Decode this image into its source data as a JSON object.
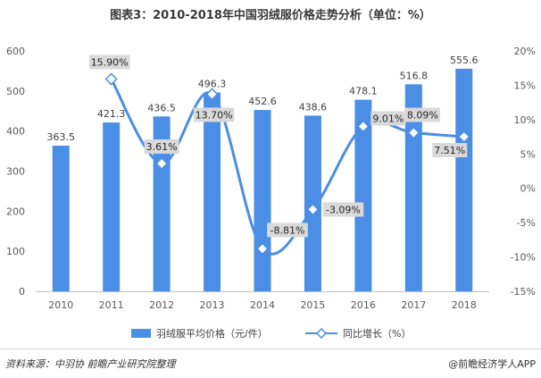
{
  "title": "图表3：2010-2018年中国羽绒服价格走势分析（单位：%）",
  "source": "资料来源：中羽协 前瞻产业研究院整理",
  "brand": "@前瞻经济学人APP",
  "colors": {
    "bar": "#4a8ee6",
    "line": "#4a8ee6",
    "label_box": "#d9d9d9"
  },
  "chart_data": {
    "type": "bar",
    "categories": [
      "2010",
      "2011",
      "2012",
      "2013",
      "2014",
      "2015",
      "2016",
      "2017",
      "2018"
    ],
    "series": [
      {
        "name": "羽绒服平均价格（元/件）",
        "type": "bar",
        "axis": "left",
        "values": [
          363.5,
          421.3,
          436.5,
          496.3,
          452.6,
          438.6,
          478.1,
          516.8,
          555.6
        ],
        "labels": [
          "363.5",
          "421.3",
          "436.5",
          "496.3",
          "452.6",
          "438.6",
          "478.1",
          "516.8",
          "555.6"
        ]
      },
      {
        "name": "同比增长（%）",
        "type": "line",
        "axis": "right",
        "values": [
          null,
          15.9,
          3.61,
          13.7,
          -8.81,
          -3.09,
          9.01,
          8.09,
          7.51
        ],
        "labels": [
          "",
          "15.90%",
          "3.61%",
          "13.70%",
          "-8.81%",
          "-3.09%",
          "9.01%",
          "8.09%",
          "7.51%"
        ]
      }
    ],
    "y_left": {
      "min": 0,
      "max": 600,
      "ticks": [
        "0",
        "100",
        "200",
        "300",
        "400",
        "500",
        "600"
      ]
    },
    "y_right": {
      "min": -15,
      "max": 20,
      "ticks": [
        "-15%",
        "-10%",
        "-5%",
        "0%",
        "5%",
        "10%",
        "15%",
        "20%"
      ]
    },
    "legend": {
      "position": "bottom"
    },
    "grid": false
  }
}
